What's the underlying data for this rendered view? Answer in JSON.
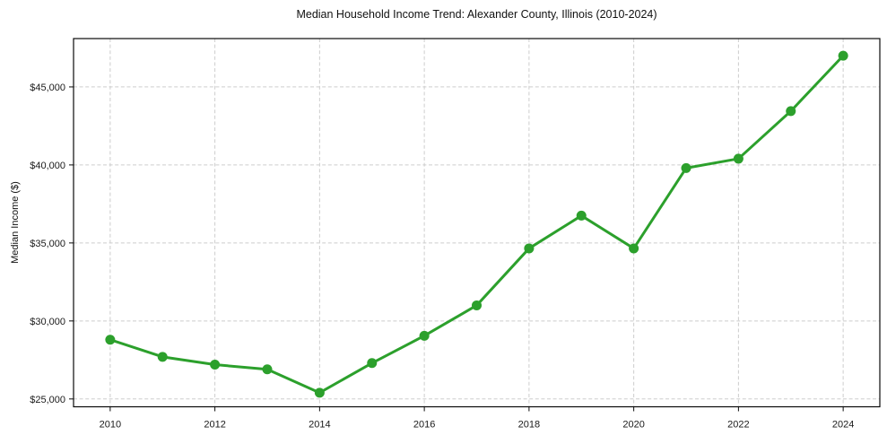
{
  "chart_data": {
    "type": "line",
    "title": "Median Household Income Trend: Alexander County, Illinois (2010-2024)",
    "xlabel": "",
    "ylabel": "Median Income ($)",
    "x": [
      2010,
      2011,
      2012,
      2013,
      2014,
      2015,
      2016,
      2017,
      2018,
      2019,
      2020,
      2021,
      2022,
      2023,
      2024
    ],
    "values": [
      28800,
      27700,
      27200,
      26900,
      25400,
      27300,
      29050,
      31000,
      34650,
      36750,
      34650,
      39800,
      40400,
      43450,
      47000
    ],
    "series_name": "Median Household Income",
    "line_color": "#2ca02c",
    "marker": "circle",
    "grid": true,
    "grid_style": "dashed",
    "grid_color": "#cdcdcd",
    "background_color": "#ffffff",
    "legend": "none",
    "xlim": [
      2009.3,
      2024.7
    ],
    "ylim": [
      24500,
      48100
    ],
    "xtick_values": [
      2010,
      2012,
      2014,
      2016,
      2018,
      2020,
      2022,
      2024
    ],
    "xtick_labels": [
      "2010",
      "2012",
      "2014",
      "2016",
      "2018",
      "2020",
      "2022",
      "2024"
    ],
    "ytick_values": [
      25000,
      30000,
      35000,
      40000,
      45000
    ],
    "ytick_labels": [
      "$25,000",
      "$30,000",
      "$35,000",
      "$40,000",
      "$45,000"
    ]
  }
}
